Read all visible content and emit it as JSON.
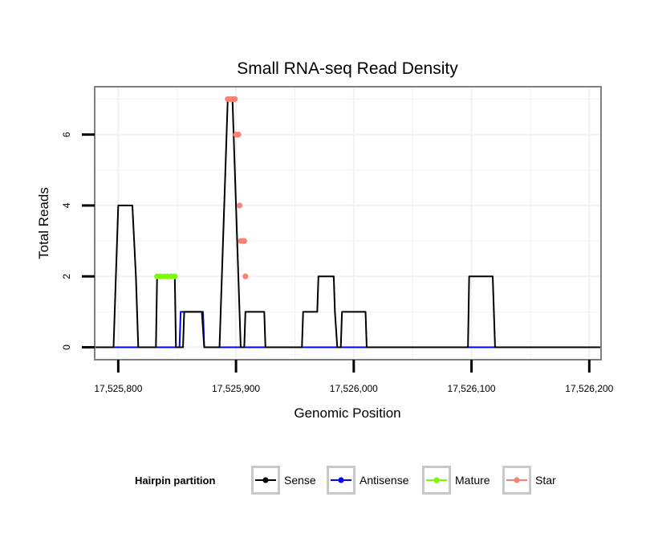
{
  "chart_data": {
    "type": "line",
    "title": "Small RNA-seq Read Density",
    "xlabel": "Genomic Position",
    "ylabel": "Total Reads",
    "xlim": [
      17525780,
      17526210
    ],
    "ylim": [
      -0.35,
      7.35
    ],
    "x_ticks": [
      17525800,
      17525900,
      17526000,
      17526100,
      17526200
    ],
    "x_tick_labels": [
      "17,525,800",
      "17,525,900",
      "17,526,000",
      "17,526,100",
      "17,526,200"
    ],
    "y_ticks": [
      0,
      2,
      4,
      6
    ],
    "y_tick_labels": [
      "0",
      "2",
      "4",
      "6"
    ],
    "grid": true,
    "legend": {
      "title": "Hairpin partition",
      "position": "bottom",
      "entries": [
        "Sense",
        "Antisense",
        "Mature",
        "Star"
      ]
    },
    "colors": {
      "Sense": "#000000",
      "Antisense": "#0000ff",
      "Mature": "#7cfc00",
      "Star": "#fa8072",
      "panel_border": "#7f7f7f",
      "grid": "#f2f2f2"
    },
    "series": [
      {
        "name": "Sense",
        "points": [
          [
            17525780,
            0
          ],
          [
            17525796,
            0
          ],
          [
            17525797,
            1
          ],
          [
            17525798,
            2
          ],
          [
            17525800,
            4
          ],
          [
            17525810,
            4
          ],
          [
            17525812,
            4
          ],
          [
            17525815,
            2
          ],
          [
            17525817,
            0
          ],
          [
            17525832,
            0
          ],
          [
            17525833,
            2
          ],
          [
            17525848,
            2
          ],
          [
            17525849,
            0
          ],
          [
            17525855,
            0
          ],
          [
            17525856,
            1
          ],
          [
            17525871,
            1
          ],
          [
            17525873,
            0
          ],
          [
            17525886,
            0
          ],
          [
            17525887,
            1
          ],
          [
            17525888,
            2
          ],
          [
            17525889,
            3
          ],
          [
            17525890,
            4
          ],
          [
            17525891,
            5
          ],
          [
            17525892,
            6
          ],
          [
            17525893,
            7
          ],
          [
            17525897,
            7
          ],
          [
            17525898,
            6
          ],
          [
            17525899,
            5
          ],
          [
            17525900,
            4
          ],
          [
            17525901,
            3
          ],
          [
            17525902,
            2
          ],
          [
            17525903,
            1
          ],
          [
            17525904,
            0
          ],
          [
            17525907,
            0
          ],
          [
            17525908,
            1
          ],
          [
            17525924,
            1
          ],
          [
            17525925,
            0
          ],
          [
            17525956,
            0
          ],
          [
            17525957,
            1
          ],
          [
            17525969,
            1
          ],
          [
            17525970,
            2
          ],
          [
            17525983,
            2
          ],
          [
            17525984,
            1
          ],
          [
            17525986,
            0
          ],
          [
            17525989,
            0
          ],
          [
            17525990,
            1
          ],
          [
            17526010,
            1
          ],
          [
            17526011,
            0
          ],
          [
            17526097,
            0
          ],
          [
            17526098,
            2
          ],
          [
            17526118,
            2
          ],
          [
            17526119,
            1
          ],
          [
            17526120,
            0
          ],
          [
            17526210,
            0
          ]
        ]
      },
      {
        "name": "Antisense",
        "points": [
          [
            17525780,
            0
          ],
          [
            17525852,
            0
          ],
          [
            17525853,
            1
          ],
          [
            17525872,
            1
          ],
          [
            17525873,
            0
          ],
          [
            17526210,
            0
          ]
        ]
      },
      {
        "name": "Mature",
        "markers": [
          [
            17525833,
            2
          ],
          [
            17525836,
            2
          ],
          [
            17525839,
            2
          ],
          [
            17525842,
            2
          ],
          [
            17525845,
            2
          ],
          [
            17525848,
            2
          ]
        ]
      },
      {
        "name": "Star",
        "markers": [
          [
            17525893,
            7
          ],
          [
            17525895,
            7
          ],
          [
            17525897,
            7
          ],
          [
            17525899,
            7
          ],
          [
            17525900,
            6
          ],
          [
            17525902,
            6
          ],
          [
            17525903,
            4
          ],
          [
            17525904,
            3
          ],
          [
            17525906,
            3
          ],
          [
            17525907,
            3
          ],
          [
            17525908,
            2
          ]
        ]
      }
    ]
  }
}
